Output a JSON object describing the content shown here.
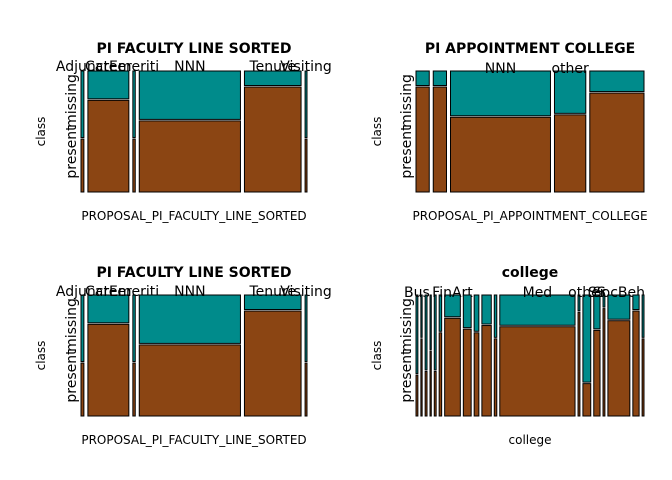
{
  "colors": {
    "absent": "#8B4513",
    "present": "#008B8B",
    "stroke": "#000000"
  },
  "chart_data": [
    {
      "type": "mosaic",
      "title": "PI FACULTY LINE SORTED",
      "xlabel": "PROPOSAL_PI_FACULTY_LINE_SORTED",
      "ylabel": "class",
      "row_labels": [
        "missing",
        "present"
      ],
      "categories": [
        {
          "label": "Adjunct",
          "weight": 0.012,
          "present_frac": 0.55
        },
        {
          "label": "Career",
          "weight": 0.17,
          "present_frac": 0.23
        },
        {
          "label": "Emeriti",
          "weight": 0.01,
          "present_frac": 0.55
        },
        {
          "label": "NNN",
          "weight": 0.42,
          "present_frac": 0.4
        },
        {
          "label": "Tenure",
          "weight": 0.235,
          "present_frac": 0.12
        },
        {
          "label": "Visiting",
          "weight": 0.008,
          "present_frac": 0.55
        }
      ]
    },
    {
      "type": "mosaic",
      "title": "PI APPOINTMENT COLLEGE",
      "xlabel": "PROPOSAL_PI_APPOINTMENT_COLLEGE",
      "ylabel": "class",
      "row_labels": [
        "missing",
        "present"
      ],
      "categories": [
        {
          "label": "",
          "weight": 0.055,
          "present_frac": 0.12
        },
        {
          "label": "",
          "weight": 0.055,
          "present_frac": 0.12
        },
        {
          "label": "NNN",
          "weight": 0.415,
          "present_frac": 0.37
        },
        {
          "label": "other",
          "weight": 0.13,
          "present_frac": 0.35
        },
        {
          "label": "",
          "weight": 0.225,
          "present_frac": 0.17
        }
      ]
    },
    {
      "type": "mosaic",
      "title": "PI FACULTY LINE SORTED",
      "xlabel": "PROPOSAL_PI_FACULTY_LINE_SORTED",
      "ylabel": "class",
      "row_labels": [
        "missing",
        "present"
      ],
      "categories": [
        {
          "label": "Adjunct",
          "weight": 0.012,
          "present_frac": 0.55
        },
        {
          "label": "Career",
          "weight": 0.17,
          "present_frac": 0.23
        },
        {
          "label": "Emeriti",
          "weight": 0.01,
          "present_frac": 0.55
        },
        {
          "label": "NNN",
          "weight": 0.42,
          "present_frac": 0.4
        },
        {
          "label": "Tenure",
          "weight": 0.235,
          "present_frac": 0.12
        },
        {
          "label": "Visiting",
          "weight": 0.008,
          "present_frac": 0.55
        }
      ]
    },
    {
      "type": "mosaic",
      "title": "college",
      "xlabel": "college",
      "ylabel": "class",
      "row_labels": [
        "missing",
        "present"
      ],
      "categories": [
        {
          "label": "Bus",
          "weight": 0.006,
          "present_frac": 0.65
        },
        {
          "label": "",
          "weight": 0.004,
          "present_frac": 0.35
        },
        {
          "label": "",
          "weight": 0.006,
          "present_frac": 0.62
        },
        {
          "label": "",
          "weight": 0.004,
          "present_frac": 0.45
        },
        {
          "label": "",
          "weight": 0.006,
          "present_frac": 0.62
        },
        {
          "label": "",
          "weight": 0.008,
          "present_frac": 0.3
        },
        {
          "label": "FinArt",
          "weight": 0.05,
          "present_frac": 0.18
        },
        {
          "label": "",
          "weight": 0.025,
          "present_frac": 0.27
        },
        {
          "label": "",
          "weight": 0.015,
          "present_frac": 0.3
        },
        {
          "label": "",
          "weight": 0.03,
          "present_frac": 0.24
        },
        {
          "label": "",
          "weight": 0.008,
          "present_frac": 0.35
        },
        {
          "label": "Med",
          "weight": 0.24,
          "present_frac": 0.25
        },
        {
          "label": "",
          "weight": 0.006,
          "present_frac": 0.13
        },
        {
          "label": "other",
          "weight": 0.025,
          "present_frac": 0.72
        },
        {
          "label": "SS",
          "weight": 0.02,
          "present_frac": 0.28
        },
        {
          "label": "",
          "weight": 0.006,
          "present_frac": 0.1
        },
        {
          "label": "SocBeh",
          "weight": 0.07,
          "present_frac": 0.2
        },
        {
          "label": "",
          "weight": 0.02,
          "present_frac": 0.12
        },
        {
          "label": "",
          "weight": 0.006,
          "present_frac": 0.35
        }
      ]
    }
  ]
}
